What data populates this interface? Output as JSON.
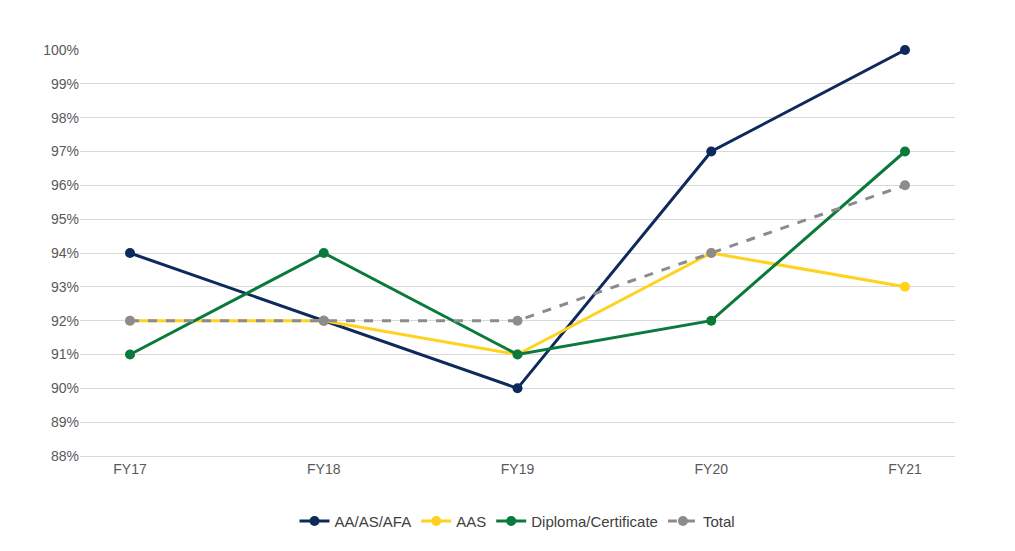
{
  "chart_data": {
    "type": "line",
    "categories": [
      "FY17",
      "FY18",
      "FY19",
      "FY20",
      "FY21"
    ],
    "series": [
      {
        "name": "AA/AS/AFA",
        "color": "#0e2a5c",
        "marker": "circle",
        "line_style": "solid",
        "values": [
          94,
          92,
          90,
          97,
          100
        ]
      },
      {
        "name": "AAS",
        "color": "#ffd21f",
        "marker": "circle",
        "line_style": "solid",
        "values": [
          92,
          92,
          91,
          94,
          93
        ]
      },
      {
        "name": "Diploma/Certificate",
        "color": "#0a7a3c",
        "marker": "circle",
        "line_style": "solid",
        "values": [
          91,
          94,
          91,
          92,
          97
        ]
      },
      {
        "name": "Total",
        "color": "#8c8c8c",
        "marker": "circle",
        "line_style": "dashed",
        "values": [
          92,
          92,
          92,
          94,
          96
        ]
      }
    ],
    "ylim": [
      88,
      100
    ],
    "yticks": [
      {
        "value": 88,
        "label": "88%"
      },
      {
        "value": 89,
        "label": "89%"
      },
      {
        "value": 90,
        "label": "90%"
      },
      {
        "value": 91,
        "label": "91%"
      },
      {
        "value": 92,
        "label": "92%"
      },
      {
        "value": 93,
        "label": "93%"
      },
      {
        "value": 94,
        "label": "94%"
      },
      {
        "value": 95,
        "label": "95%"
      },
      {
        "value": 96,
        "label": "96%"
      },
      {
        "value": 97,
        "label": "97%"
      },
      {
        "value": 98,
        "label": "98%"
      },
      {
        "value": 99,
        "label": "99%"
      },
      {
        "value": 100,
        "label": "100%"
      }
    ],
    "grid": true,
    "legend": "bottom"
  }
}
